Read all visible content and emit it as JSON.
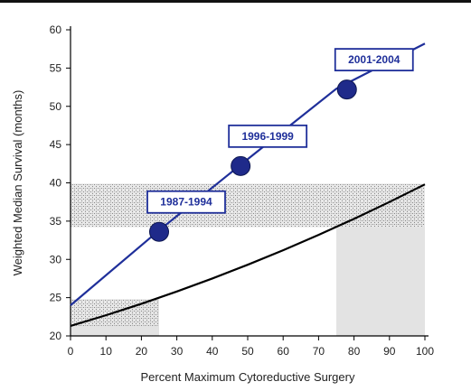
{
  "chart_data": {
    "type": "line",
    "xlabel": "Percent Maximum Cytoreductive Surgery",
    "ylabel": "Weighted Median Survival (months)",
    "xlim": [
      0,
      100
    ],
    "ylim": [
      20,
      60
    ],
    "xticks": [
      "0",
      "10",
      "20",
      "30",
      "40",
      "50",
      "60",
      "70",
      "80",
      "90",
      "100"
    ],
    "yticks": [
      "20",
      "25",
      "30",
      "35",
      "40",
      "45",
      "50",
      "55",
      "60"
    ],
    "grid": false,
    "colors": {
      "blue_series": "#1f2f9a",
      "black_curve": "#000000",
      "shaded_region": "#e3e3e3",
      "hatched_band": "#bdbdbd"
    },
    "series": [
      {
        "style": "blue-line-with-markers",
        "x": [
          0,
          25,
          50,
          75,
          100
        ],
        "y": [
          24,
          33.8,
          43.1,
          52.3,
          58.2
        ],
        "marked_points": [
          {
            "x": 25,
            "y": 33.6,
            "label": "1987-1994"
          },
          {
            "x": 48,
            "y": 42.2,
            "label": "1996-1999"
          },
          {
            "x": 78,
            "y": 52.2,
            "label": "2001-2004"
          }
        ]
      },
      {
        "style": "black-curve",
        "x": [
          0,
          10,
          20,
          30,
          40,
          50,
          60,
          70,
          80,
          90,
          100
        ],
        "y": [
          21.3,
          22.7,
          24.2,
          25.8,
          27.5,
          29.3,
          31.2,
          33.2,
          35.3,
          37.5,
          39.8
        ]
      }
    ],
    "shaded_regions": [
      {
        "x": [
          0,
          25
        ],
        "y_bottom": 20,
        "y_top": "curve"
      },
      {
        "x": [
          75,
          100
        ],
        "y_bottom": 20,
        "y_top": "curve"
      }
    ],
    "hatched_bands": [
      {
        "x": [
          0,
          100
        ],
        "y": [
          34.2,
          39.9
        ]
      },
      {
        "x": [
          0,
          25
        ],
        "y": [
          21.3,
          24.8
        ]
      }
    ]
  }
}
